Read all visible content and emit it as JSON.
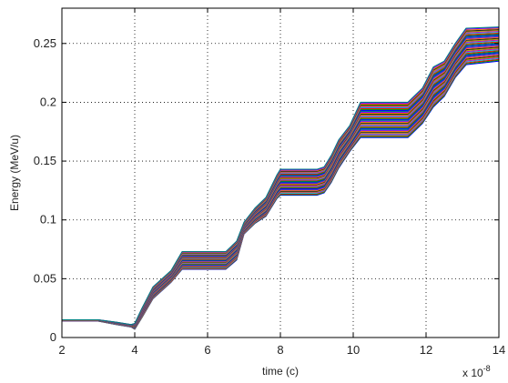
{
  "chart_data": {
    "type": "line",
    "xlabel": "time (c)",
    "ylabel": "Energy (MeV/u)",
    "x_multiplier_label": "x 10",
    "x_multiplier_exponent": "-8",
    "xlim": [
      2,
      14
    ],
    "ylim": [
      0,
      0.28
    ],
    "xticks": [
      2,
      4,
      6,
      8,
      10,
      12,
      14
    ],
    "xtick_labels": [
      "2",
      "4",
      "6",
      "8",
      "10",
      "12",
      "14"
    ],
    "yticks": [
      0,
      0.05,
      0.1,
      0.15,
      0.2,
      0.25
    ],
    "ytick_labels": [
      "0",
      "0.05",
      "0.1",
      "0.15",
      "0.2",
      "0.25"
    ],
    "grid": true,
    "grid_style": "dotted",
    "series_count": 40,
    "series_description_values": {
      "x": [
        2.0,
        3.0,
        3.5,
        3.9,
        4.0,
        4.2,
        4.5,
        5.0,
        5.3,
        6.5,
        6.8,
        7.0,
        7.3,
        7.6,
        7.9,
        8.0,
        9.0,
        9.2,
        9.4,
        9.6,
        9.9,
        10.2,
        10.5,
        11.5,
        11.9,
        12.2,
        12.5,
        12.8,
        13.1,
        14.0
      ],
      "y_top": [
        0.015,
        0.015,
        0.013,
        0.011,
        0.012,
        0.025,
        0.043,
        0.057,
        0.073,
        0.073,
        0.082,
        0.098,
        0.11,
        0.119,
        0.138,
        0.143,
        0.143,
        0.145,
        0.155,
        0.168,
        0.18,
        0.2,
        0.2,
        0.2,
        0.212,
        0.23,
        0.235,
        0.25,
        0.263,
        0.264
      ],
      "y_bottom": [
        0.014,
        0.014,
        0.011,
        0.009,
        0.007,
        0.017,
        0.033,
        0.047,
        0.058,
        0.058,
        0.066,
        0.088,
        0.097,
        0.103,
        0.118,
        0.121,
        0.121,
        0.123,
        0.132,
        0.144,
        0.158,
        0.17,
        0.17,
        0.17,
        0.182,
        0.196,
        0.205,
        0.221,
        0.232,
        0.235
      ]
    },
    "palette": [
      "#0000ff",
      "#00aa00",
      "#ff0000",
      "#00cccc",
      "#cc00cc",
      "#aaaa00",
      "#222222",
      "#ff7f00",
      "#7f00ff",
      "#007f7f"
    ]
  }
}
